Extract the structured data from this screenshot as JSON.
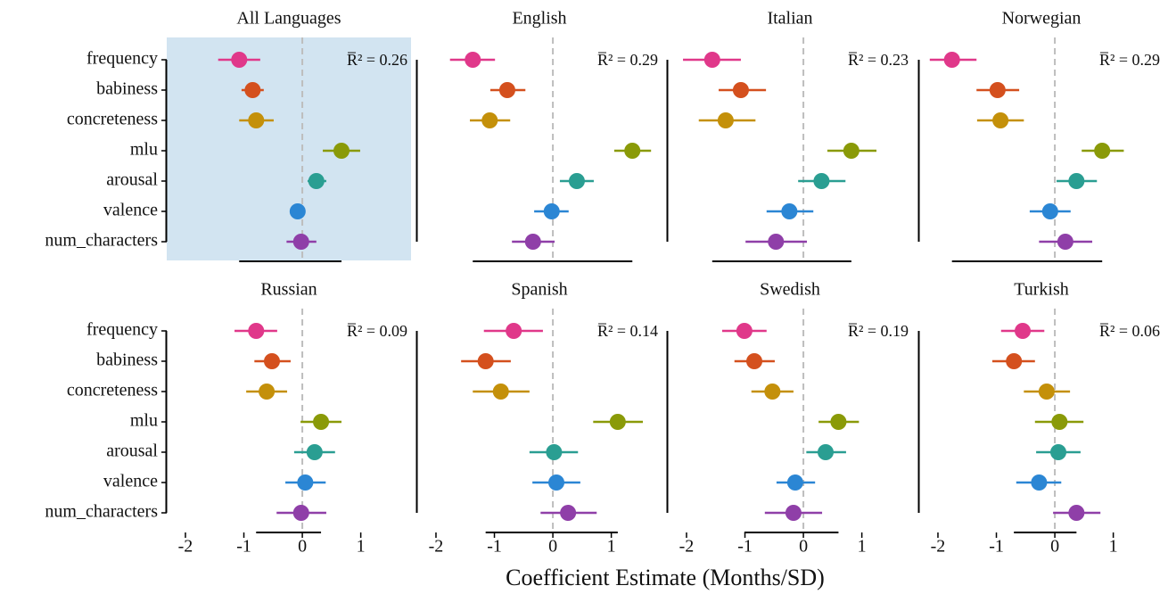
{
  "x_label": "Coefficient Estimate (Months/SD)",
  "xlim": [
    -2.32,
    1.86
  ],
  "xticks": [
    -2,
    -1,
    0,
    1
  ],
  "categories": [
    "frequency",
    "babiness",
    "concreteness",
    "mlu",
    "arousal",
    "valence",
    "num_characters"
  ],
  "colors": [
    "#e0388a",
    "#d4501e",
    "#c4900a",
    "#8a9a08",
    "#2a9e92",
    "#2b86d4",
    "#8f3fa8"
  ],
  "chart_data": [
    {
      "type": "pointrange",
      "title": "All Languages",
      "annotation": "R̅² = 0.26",
      "background": "#d2e4f1",
      "values": [
        -1.08,
        -0.85,
        -0.79,
        0.67,
        0.24,
        -0.08,
        -0.02
      ],
      "lower": [
        -1.44,
        -1.04,
        -1.08,
        0.35,
        0.09,
        -0.17,
        -0.27
      ],
      "upper": [
        -0.72,
        -0.66,
        -0.49,
        0.99,
        0.41,
        0.03,
        0.24
      ]
    },
    {
      "type": "pointrange",
      "title": "English",
      "annotation": "R̅² = 0.29",
      "values": [
        -1.37,
        -0.78,
        -1.08,
        1.36,
        0.41,
        -0.02,
        -0.34
      ],
      "lower": [
        -1.76,
        -1.07,
        -1.42,
        1.05,
        0.12,
        -0.32,
        -0.7
      ],
      "upper": [
        -0.99,
        -0.47,
        -0.73,
        1.68,
        0.7,
        0.27,
        0.03
      ]
    },
    {
      "type": "pointrange",
      "title": "Italian",
      "annotation": "R̅² = 0.23",
      "values": [
        -1.56,
        -1.07,
        -1.33,
        0.82,
        0.31,
        -0.24,
        -0.47
      ],
      "lower": [
        -2.06,
        -1.45,
        -1.79,
        0.41,
        -0.09,
        -0.63,
        -0.99
      ],
      "upper": [
        -1.07,
        -0.64,
        -0.82,
        1.25,
        0.72,
        0.17,
        0.06
      ]
    },
    {
      "type": "pointrange",
      "title": "Norwegian",
      "annotation": "R̅² = 0.29",
      "values": [
        -1.76,
        -0.98,
        -0.93,
        0.81,
        0.37,
        -0.08,
        0.18
      ],
      "lower": [
        -2.14,
        -1.34,
        -1.33,
        0.46,
        0.03,
        -0.43,
        -0.27
      ],
      "upper": [
        -1.34,
        -0.61,
        -0.53,
        1.18,
        0.72,
        0.27,
        0.64
      ]
    },
    {
      "type": "pointrange",
      "title": "Russian",
      "annotation": "R̅² = 0.09",
      "values": [
        -0.79,
        -0.52,
        -0.61,
        0.32,
        0.21,
        0.05,
        -0.02
      ],
      "lower": [
        -1.16,
        -0.82,
        -0.96,
        -0.03,
        -0.14,
        -0.29,
        -0.44
      ],
      "upper": [
        -0.43,
        -0.2,
        -0.26,
        0.67,
        0.56,
        0.4,
        0.41
      ]
    },
    {
      "type": "pointrange",
      "title": "Spanish",
      "annotation": "R̅² = 0.14",
      "values": [
        -0.67,
        -1.15,
        -0.89,
        1.11,
        0.02,
        0.06,
        0.26
      ],
      "lower": [
        -1.18,
        -1.57,
        -1.37,
        0.69,
        -0.4,
        -0.35,
        -0.21
      ],
      "upper": [
        -0.17,
        -0.72,
        -0.4,
        1.54,
        0.43,
        0.47,
        0.75
      ]
    },
    {
      "type": "pointrange",
      "title": "Swedish",
      "annotation": "R̅² = 0.19",
      "values": [
        -1.01,
        -0.84,
        -0.53,
        0.6,
        0.38,
        -0.14,
        -0.17
      ],
      "lower": [
        -1.39,
        -1.18,
        -0.89,
        0.26,
        0.05,
        -0.46,
        -0.66
      ],
      "upper": [
        -0.63,
        -0.49,
        -0.17,
        0.95,
        0.73,
        0.2,
        0.32
      ]
    },
    {
      "type": "pointrange",
      "title": "Turkish",
      "annotation": "R̅² = 0.06",
      "values": [
        -0.55,
        -0.7,
        -0.14,
        0.08,
        0.06,
        -0.27,
        0.37
      ],
      "lower": [
        -0.92,
        -1.07,
        -0.53,
        -0.34,
        -0.32,
        -0.66,
        -0.03
      ],
      "upper": [
        -0.18,
        -0.34,
        0.26,
        0.49,
        0.44,
        0.11,
        0.78
      ]
    }
  ]
}
